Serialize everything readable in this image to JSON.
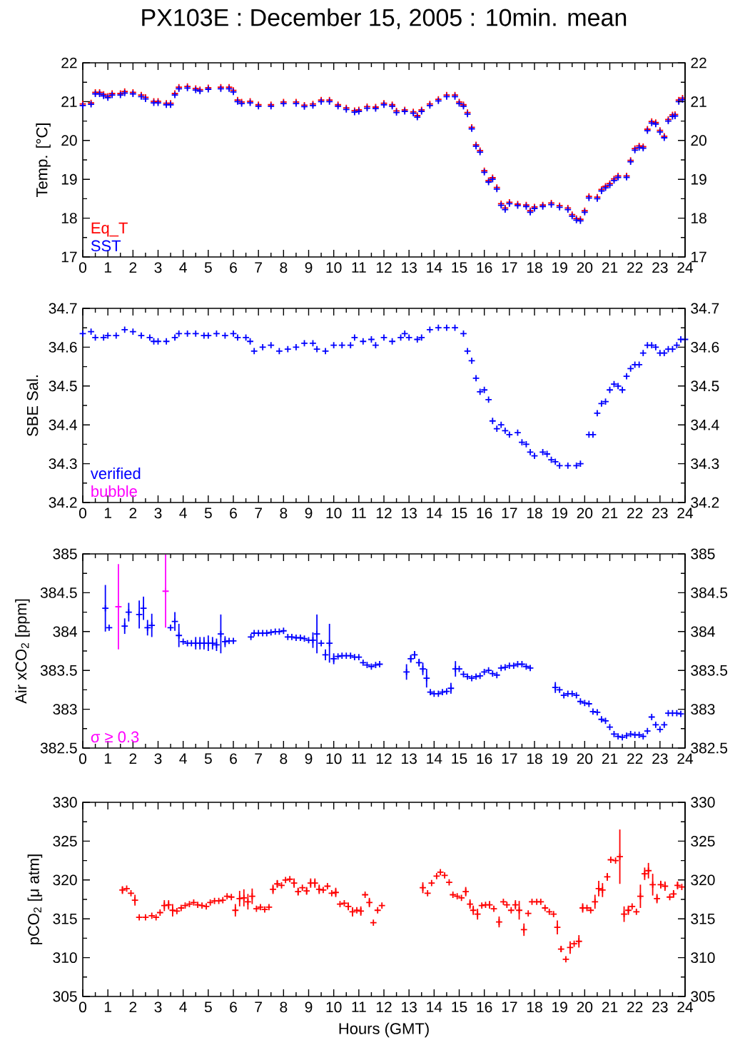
{
  "chart_data": [
    {
      "type": "scatter",
      "title": "PX103E : December 15, 2005 : 10min. mean",
      "ylabel": "Temp. [°C]",
      "marker": "cross",
      "legend": "bottom left",
      "xlim": [
        0,
        24
      ],
      "xticks": [
        0,
        1,
        2,
        3,
        4,
        5,
        6,
        7,
        8,
        9,
        10,
        11,
        12,
        13,
        14,
        15,
        16,
        17,
        18,
        19,
        20,
        21,
        22,
        23,
        24
      ],
      "ylim": [
        17,
        22
      ],
      "yticks": [
        17,
        18,
        19,
        20,
        21,
        22
      ],
      "y2lim": [
        17,
        22
      ],
      "y2ticks": [
        17,
        18,
        19,
        20,
        21,
        22
      ],
      "x": [
        0,
        0.33,
        0.5,
        0.67,
        0.83,
        1,
        1.17,
        1.5,
        1.67,
        2,
        2.33,
        2.5,
        2.83,
        3,
        3.33,
        3.5,
        3.67,
        3.83,
        4.17,
        4.5,
        4.67,
        5,
        5.5,
        5.83,
        6,
        6.17,
        6.33,
        6.67,
        7,
        7.5,
        8,
        8.5,
        8.83,
        9.17,
        9.5,
        9.83,
        10.17,
        10.5,
        10.83,
        11,
        11.33,
        11.67,
        12,
        12.33,
        12.5,
        12.83,
        13.17,
        13.33,
        13.5,
        13.83,
        14.17,
        14.5,
        14.83,
        15,
        15.17,
        15.33,
        15.5,
        15.67,
        15.83,
        16,
        16.17,
        16.33,
        16.5,
        16.67,
        16.83,
        17,
        17.33,
        17.67,
        17.83,
        18,
        18.33,
        18.67,
        19,
        19.33,
        19.5,
        19.67,
        19.83,
        20,
        20.17,
        20.5,
        20.67,
        20.83,
        21,
        21.17,
        21.33,
        21.67,
        21.83,
        22,
        22.17,
        22.33,
        22.5,
        22.67,
        22.83,
        23,
        23.17,
        23.33,
        23.5,
        23.6,
        23.75,
        23.9
      ],
      "series": [
        {
          "name": "Eq_T",
          "color": "#ff0000",
          "values": [
            20.94,
            20.97,
            21.24,
            21.24,
            21.19,
            21.14,
            21.21,
            21.21,
            21.26,
            21.24,
            21.17,
            21.11,
            21.01,
            21.01,
            20.96,
            20.96,
            21.21,
            21.37,
            21.39,
            21.34,
            21.31,
            21.36,
            21.37,
            21.37,
            21.29,
            21.04,
            20.99,
            21.01,
            20.92,
            20.92,
            20.99,
            20.99,
            20.91,
            20.94,
            21.04,
            21.04,
            20.92,
            20.84,
            20.77,
            20.79,
            20.87,
            20.86,
            20.96,
            20.92,
            20.76,
            20.79,
            20.74,
            20.64,
            20.79,
            20.94,
            21.06,
            21.17,
            21.17,
            20.99,
            20.92,
            20.72,
            20.34,
            19.89,
            19.74,
            19.22,
            18.97,
            19.04,
            18.79,
            18.37,
            18.26,
            18.41,
            18.36,
            18.34,
            18.19,
            18.29,
            18.34,
            18.39,
            18.32,
            18.26,
            18.09,
            17.99,
            17.97,
            18.19,
            18.56,
            18.54,
            18.74,
            18.82,
            18.89,
            19.01,
            19.09,
            19.09,
            19.49,
            19.79,
            19.86,
            19.84,
            20.29,
            20.49,
            20.46,
            20.26,
            20.11,
            20.54,
            20.66,
            20.67,
            21.04,
            21.09
          ]
        },
        {
          "name": "SST",
          "color": "#0000ff",
          "values": [
            20.9,
            20.93,
            21.2,
            21.2,
            21.15,
            21.1,
            21.17,
            21.17,
            21.22,
            21.2,
            21.13,
            21.07,
            20.97,
            20.97,
            20.92,
            20.92,
            21.17,
            21.33,
            21.35,
            21.3,
            21.27,
            21.32,
            21.33,
            21.33,
            21.25,
            21.0,
            20.95,
            20.97,
            20.88,
            20.88,
            20.95,
            20.95,
            20.87,
            20.9,
            21.0,
            21.0,
            20.88,
            20.8,
            20.73,
            20.75,
            20.83,
            20.82,
            20.92,
            20.88,
            20.72,
            20.75,
            20.7,
            20.6,
            20.75,
            20.9,
            21.02,
            21.13,
            21.13,
            20.95,
            20.88,
            20.68,
            20.3,
            19.85,
            19.7,
            19.18,
            18.93,
            19.0,
            18.75,
            18.33,
            18.22,
            18.37,
            18.32,
            18.3,
            18.15,
            18.25,
            18.3,
            18.35,
            18.28,
            18.22,
            18.05,
            17.95,
            17.93,
            18.15,
            18.52,
            18.5,
            18.7,
            18.78,
            18.85,
            18.97,
            19.05,
            19.05,
            19.45,
            19.75,
            19.82,
            19.8,
            20.25,
            20.45,
            20.42,
            20.22,
            20.07,
            20.5,
            20.62,
            20.63,
            21.0,
            21.05
          ]
        }
      ]
    },
    {
      "type": "scatter",
      "ylabel": "SBE Sal.",
      "marker": "cross",
      "legend": "bottom left",
      "xlim": [
        0,
        24
      ],
      "xticks": [
        0,
        1,
        2,
        3,
        4,
        5,
        6,
        7,
        8,
        9,
        10,
        11,
        12,
        13,
        14,
        15,
        16,
        17,
        18,
        19,
        20,
        21,
        22,
        23,
        24
      ],
      "ylim": [
        34.2,
        34.7
      ],
      "yticks": [
        34.2,
        34.3,
        34.4,
        34.5,
        34.6,
        34.7
      ],
      "y2lim": [
        34.2,
        34.7
      ],
      "y2ticks": [
        34.2,
        34.3,
        34.4,
        34.5,
        34.6,
        34.7
      ],
      "series": [
        {
          "name": "verified",
          "color": "#0000ff",
          "x": [
            0,
            0.33,
            0.5,
            0.83,
            1,
            1.33,
            1.67,
            2,
            2.33,
            2.67,
            2.83,
            3,
            3.33,
            3.67,
            3.83,
            4.17,
            4.5,
            4.83,
            5,
            5.33,
            5.67,
            6,
            6.17,
            6.5,
            6.67,
            6.83,
            7.17,
            7.5,
            7.83,
            8.17,
            8.5,
            8.83,
            9.17,
            9.33,
            9.67,
            10,
            10.33,
            10.67,
            10.83,
            11.17,
            11.5,
            11.67,
            12,
            12.33,
            12.67,
            12.83,
            13,
            13.33,
            13.5,
            13.83,
            14.17,
            14.5,
            14.83,
            15.17,
            15.33,
            15.5,
            15.67,
            15.83,
            16,
            16.17,
            16.33,
            16.5,
            16.67,
            16.83,
            17,
            17.33,
            17.5,
            17.67,
            17.83,
            18,
            18.33,
            18.5,
            18.67,
            18.83,
            19,
            19.33,
            19.67,
            19.83,
            20.17,
            20.33,
            20.5,
            20.67,
            20.83,
            21,
            21.17,
            21.33,
            21.5,
            21.67,
            21.83,
            22,
            22.17,
            22.33,
            22.5,
            22.67,
            22.83,
            23,
            23.17,
            23.33,
            23.5,
            23.67,
            23.83,
            24
          ],
          "values": [
            34.635,
            34.64,
            34.625,
            34.625,
            34.63,
            34.63,
            34.645,
            34.64,
            34.63,
            34.625,
            34.615,
            34.615,
            34.615,
            34.625,
            34.635,
            34.635,
            34.635,
            34.63,
            34.63,
            34.635,
            34.63,
            34.635,
            34.625,
            34.625,
            34.615,
            34.59,
            34.6,
            34.605,
            34.59,
            34.595,
            34.6,
            34.61,
            34.61,
            34.595,
            34.59,
            34.605,
            34.605,
            34.605,
            34.625,
            34.615,
            34.62,
            34.605,
            34.625,
            34.615,
            34.625,
            34.635,
            34.625,
            34.62,
            34.625,
            34.645,
            34.65,
            34.65,
            34.65,
            34.635,
            34.59,
            34.565,
            34.52,
            34.485,
            34.49,
            34.465,
            34.41,
            34.39,
            34.4,
            34.385,
            34.375,
            34.38,
            34.355,
            34.35,
            34.33,
            34.32,
            34.33,
            34.325,
            34.31,
            34.305,
            34.295,
            34.295,
            34.295,
            34.3,
            34.375,
            34.375,
            34.43,
            34.455,
            34.46,
            34.49,
            34.505,
            34.5,
            34.49,
            34.525,
            34.545,
            34.555,
            34.555,
            34.585,
            34.605,
            34.605,
            34.6,
            34.585,
            34.585,
            34.595,
            34.595,
            34.605,
            34.62,
            34.62
          ]
        },
        {
          "name": "bubble",
          "color": "#ff00ff"
        }
      ]
    },
    {
      "type": "scatter",
      "ylabel": "Air xCO$_{2}$ [ppm]",
      "marker": "cross",
      "legend": "bottom left",
      "xlim": [
        0,
        24
      ],
      "xticks": [
        0,
        1,
        2,
        3,
        4,
        5,
        6,
        7,
        8,
        9,
        10,
        11,
        12,
        13,
        14,
        15,
        16,
        17,
        18,
        19,
        20,
        21,
        22,
        23,
        24
      ],
      "ylim": [
        382.5,
        385
      ],
      "yticks": [
        382.5,
        383,
        383.5,
        384,
        384.5,
        385
      ],
      "y2lim": [
        382.5,
        385
      ],
      "y2ticks": [
        382.5,
        383,
        383.5,
        384,
        384.5,
        385
      ],
      "series": [
        {
          "color": "#0000ff",
          "x": [
            0.9,
            1.05,
            1.67,
            1.83,
            2.25,
            2.42,
            2.58,
            2.75,
            3.5,
            3.67,
            3.83,
            4.0,
            4.17,
            4.33,
            4.5,
            4.67,
            4.83,
            5.0,
            5.17,
            5.33,
            5.5,
            5.67,
            5.83,
            6.0,
            6.7,
            6.83,
            7.0,
            7.17,
            7.33,
            7.5,
            7.67,
            7.83,
            8.0,
            8.17,
            8.33,
            8.5,
            8.67,
            8.83,
            9.0,
            9.17,
            9.33,
            9.5,
            9.67,
            9.83,
            10.0,
            10.17,
            10.33,
            10.5,
            10.67,
            10.83,
            11.0,
            11.17,
            11.33,
            11.5,
            11.67,
            11.83,
            12.9,
            13.07,
            13.22,
            13.4,
            13.55,
            13.7,
            13.85,
            14.0,
            14.17,
            14.33,
            14.5,
            14.67,
            14.85,
            15.0,
            15.17,
            15.33,
            15.5,
            15.67,
            15.83,
            16.0,
            16.17,
            16.33,
            16.5,
            16.67,
            16.83,
            17.0,
            17.17,
            17.33,
            17.5,
            17.67,
            17.83,
            18.83,
            19.0,
            19.17,
            19.33,
            19.5,
            19.67,
            19.83,
            20.0,
            20.17,
            20.33,
            20.5,
            20.67,
            20.83,
            21.0,
            21.17,
            21.33,
            21.5,
            21.67,
            21.83,
            22.0,
            22.17,
            22.33,
            22.5,
            22.67,
            22.83,
            23.0,
            23.17,
            23.33,
            23.5,
            23.67,
            23.83
          ],
          "values": [
            384.3,
            384.05,
            384.07,
            384.25,
            384.22,
            384.3,
            384.05,
            384.08,
            384.05,
            384.13,
            383.95,
            383.87,
            383.85,
            383.85,
            383.85,
            383.85,
            383.85,
            383.85,
            383.85,
            383.83,
            383.97,
            383.87,
            383.88,
            383.88,
            383.93,
            383.98,
            383.98,
            383.98,
            383.98,
            383.99,
            384.0,
            384.0,
            384.01,
            383.93,
            383.93,
            383.92,
            383.92,
            383.91,
            383.89,
            383.89,
            383.97,
            383.85,
            383.7,
            383.85,
            383.65,
            383.68,
            383.69,
            383.69,
            383.69,
            383.67,
            383.67,
            383.6,
            383.57,
            383.55,
            383.57,
            383.58,
            383.48,
            383.65,
            383.7,
            383.6,
            383.52,
            383.4,
            383.22,
            383.2,
            383.2,
            383.22,
            383.23,
            383.27,
            383.52,
            383.52,
            383.45,
            383.42,
            383.4,
            383.42,
            383.43,
            383.48,
            383.5,
            383.46,
            383.44,
            383.53,
            383.54,
            383.56,
            383.56,
            383.58,
            383.58,
            383.55,
            383.53,
            383.28,
            383.25,
            383.18,
            383.2,
            383.2,
            383.18,
            383.1,
            383.08,
            383.07,
            382.97,
            382.96,
            382.87,
            382.85,
            382.77,
            382.68,
            382.65,
            382.64,
            382.66,
            382.68,
            382.67,
            382.67,
            382.65,
            382.72,
            382.9,
            382.8,
            382.74,
            382.8,
            382.95,
            382.95,
            382.95,
            382.94
          ],
          "errors": [
            0.3,
            null,
            0.1,
            0.12,
            0.18,
            0.15,
            0.1,
            0.15,
            null,
            0.12,
            0.15,
            null,
            null,
            null,
            0.08,
            0.08,
            0.08,
            0.1,
            0.08,
            0.08,
            0.25,
            0.07,
            null,
            null,
            null,
            null,
            null,
            null,
            null,
            null,
            null,
            null,
            null,
            null,
            null,
            null,
            null,
            null,
            null,
            0.1,
            0.25,
            null,
            0.07,
            0.25,
            0.07,
            null,
            null,
            null,
            null,
            null,
            null,
            null,
            null,
            null,
            null,
            null,
            0.1,
            0.05,
            0.05,
            0.05,
            0.08,
            0.12,
            null,
            null,
            null,
            null,
            null,
            0.07,
            0.1,
            null,
            null,
            null,
            null,
            null,
            null,
            null,
            null,
            null,
            null,
            null,
            null,
            null,
            null,
            null,
            null,
            null,
            null,
            0.07,
            null,
            null,
            null,
            null,
            null,
            null,
            null,
            null,
            null,
            null,
            null,
            null,
            null,
            null,
            null,
            null,
            null,
            null,
            null,
            null,
            null,
            null,
            null,
            null,
            null,
            null,
            null,
            null,
            null,
            null
          ]
        },
        {
          "name": "σ ≥ 0.3",
          "color": "#ff00ff",
          "x": [
            1.42,
            3.3
          ],
          "values": [
            384.32,
            384.52
          ],
          "errors": [
            0.55,
            0.47
          ]
        }
      ]
    },
    {
      "type": "scatter",
      "ylabel": "pCO$_{2}$ [μ atm]",
      "xlabel": "Hours (GMT)",
      "marker": "cross",
      "xlim": [
        0,
        24
      ],
      "xticks": [
        0,
        1,
        2,
        3,
        4,
        5,
        6,
        7,
        8,
        9,
        10,
        11,
        12,
        13,
        14,
        15,
        16,
        17,
        18,
        19,
        20,
        21,
        22,
        23,
        24
      ],
      "ylim": [
        305,
        330
      ],
      "yticks": [
        305,
        310,
        315,
        320,
        325,
        330
      ],
      "y2lim": [
        305,
        330
      ],
      "y2ticks": [
        305,
        310,
        315,
        320,
        325,
        330
      ],
      "series": [
        {
          "color": "#ff0000",
          "x": [
            1.58,
            1.75,
            1.92,
            2.08,
            2.25,
            2.5,
            2.75,
            2.92,
            3.08,
            3.25,
            3.42,
            3.58,
            3.75,
            3.92,
            4.08,
            4.25,
            4.42,
            4.58,
            4.75,
            4.92,
            5.08,
            5.25,
            5.42,
            5.58,
            5.75,
            5.92,
            6.08,
            6.25,
            6.42,
            6.58,
            6.75,
            6.92,
            7.08,
            7.25,
            7.42,
            7.58,
            7.75,
            7.92,
            8.08,
            8.25,
            8.42,
            8.58,
            8.75,
            8.92,
            9.08,
            9.25,
            9.42,
            9.58,
            9.75,
            9.92,
            10.08,
            10.25,
            10.42,
            10.58,
            10.75,
            10.92,
            11.08,
            11.25,
            11.42,
            11.58,
            11.75,
            11.92,
            13.55,
            13.74,
            13.9,
            14.1,
            14.25,
            14.42,
            14.6,
            14.75,
            14.92,
            15.09,
            15.26,
            15.43,
            15.56,
            15.73,
            15.9,
            16.05,
            16.21,
            16.38,
            16.59,
            16.76,
            16.9,
            17.07,
            17.24,
            17.39,
            17.58,
            17.75,
            17.9,
            18.09,
            18.25,
            18.42,
            18.59,
            18.76,
            18.91,
            19.06,
            19.25,
            19.42,
            19.58,
            19.77,
            19.92,
            20.09,
            20.24,
            20.41,
            20.56,
            20.71,
            20.9,
            21.04,
            21.23,
            21.4,
            21.57,
            21.74,
            21.89,
            22.06,
            22.22,
            22.39,
            22.54,
            22.71,
            22.88,
            23.03,
            23.2,
            23.39,
            23.54,
            23.7,
            23.87
          ],
          "values": [
            318.7,
            318.9,
            318.3,
            317.4,
            315.2,
            315.2,
            315.4,
            315.2,
            315.8,
            316.7,
            316.8,
            316.1,
            316.0,
            316.4,
            316.7,
            316.9,
            317.1,
            316.8,
            316.7,
            316.6,
            317.1,
            317.3,
            317.3,
            317.4,
            317.9,
            317.8,
            316.1,
            317.6,
            317.7,
            317.2,
            317.9,
            316.3,
            316.5,
            316.2,
            316.5,
            318.8,
            319.5,
            319.3,
            320.0,
            320.1,
            319.6,
            318.5,
            319.0,
            318.6,
            319.6,
            319.6,
            318.8,
            318.7,
            319.2,
            318.3,
            318.4,
            316.9,
            317.0,
            316.6,
            315.9,
            316.1,
            316.0,
            318.1,
            317.1,
            314.5,
            316.1,
            316.7,
            319.0,
            318.3,
            319.6,
            320.5,
            321.0,
            320.6,
            319.7,
            318.1,
            317.9,
            317.7,
            318.5,
            316.9,
            316.1,
            315.6,
            316.7,
            316.8,
            316.8,
            316.3,
            314.6,
            317.2,
            316.8,
            316.1,
            316.8,
            316.1,
            313.6,
            315.7,
            317.2,
            317.2,
            317.2,
            316.4,
            315.9,
            315.6,
            313.9,
            311.1,
            309.8,
            311.3,
            311.8,
            312.1,
            316.4,
            316.4,
            316.1,
            317.2,
            318.9,
            318.7,
            320.4,
            322.6,
            322.5,
            323.0,
            315.6,
            316.1,
            316.6,
            315.9,
            317.9,
            320.8,
            321.2,
            319.4,
            317.6,
            319.4,
            319.2,
            317.8,
            318.2,
            319.3,
            319.1
          ],
          "errors": [
            0.5,
            null,
            null,
            0.7,
            null,
            null,
            null,
            null,
            null,
            0.7,
            0.6,
            0.8,
            null,
            null,
            null,
            null,
            null,
            null,
            null,
            null,
            null,
            null,
            null,
            null,
            null,
            null,
            0.8,
            1.0,
            1.1,
            1.0,
            1.0,
            null,
            null,
            null,
            null,
            0.6,
            0.5,
            null,
            null,
            null,
            0.6,
            0.5,
            null,
            0.5,
            0.6,
            0.6,
            0.6,
            null,
            null,
            null,
            0.6,
            null,
            null,
            0.5,
            0.6,
            null,
            0.6,
            null,
            0.6,
            null,
            null,
            null,
            0.7,
            null,
            null,
            null,
            null,
            null,
            null,
            null,
            null,
            null,
            0.6,
            0.6,
            0.6,
            0.7,
            null,
            null,
            0.5,
            null,
            0.7,
            null,
            null,
            null,
            0.6,
            1.2,
            0.8,
            null,
            null,
            null,
            null,
            null,
            null,
            null,
            0.9,
            0.4,
            null,
            0.8,
            null,
            0.8,
            0.6,
            null,
            null,
            0.9,
            1.0,
            0.9,
            0.5,
            null,
            null,
            3.5,
            1.0,
            0.6,
            null,
            null,
            1.5,
            0.8,
            1.0,
            1.4,
            0.6,
            0.5,
            0.6,
            null,
            0.5,
            0.5,
            null
          ]
        }
      ]
    }
  ]
}
